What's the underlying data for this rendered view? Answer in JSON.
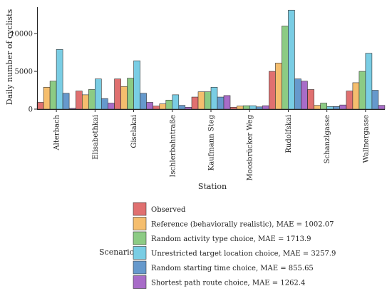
{
  "chart_data": {
    "type": "bar",
    "xlabel": "Station",
    "ylabel": "Daily number of cyclists",
    "ylim": [
      0,
      13500
    ],
    "yticks": [
      0,
      5000,
      10000
    ],
    "grid": false,
    "legend_placement": "bottom",
    "legend_title": "Scenario",
    "categories": [
      "Alterbach",
      "Elisabethkai",
      "Giselakai",
      "Ischlerbahntraße",
      "Kaufmann Steg",
      "Moosbrücker Weg",
      "Rudolfskai",
      "Schanzlgasse",
      "Wallnergasse"
    ],
    "series": [
      {
        "name": "Observed",
        "color": "#E07070",
        "values": [
          900,
          2400,
          4000,
          400,
          1600,
          250,
          5000,
          2600,
          2400
        ]
      },
      {
        "name": "Reference (behaviorally realistic), MAE = 1002.07",
        "color": "#F5BE6E",
        "values": [
          2900,
          1900,
          3000,
          700,
          2300,
          400,
          6100,
          500,
          3500
        ]
      },
      {
        "name": "Random activity type choice, MAE = 1713.9",
        "color": "#8CCB84",
        "values": [
          3700,
          2600,
          4100,
          1200,
          2300,
          450,
          11000,
          800,
          5000
        ]
      },
      {
        "name": "Unrestricted target location choice, MAE = 3257.9",
        "color": "#79CDE4",
        "values": [
          7900,
          4000,
          6400,
          1900,
          2900,
          450,
          13100,
          350,
          7400
        ]
      },
      {
        "name": "Random starting time choice, MAE = 855.65",
        "color": "#6699CC",
        "values": [
          2100,
          1400,
          2100,
          500,
          1600,
          300,
          4000,
          350,
          2500
        ]
      },
      {
        "name": "Shortest path route choice, MAE = 1262.4",
        "color": "#A86CC8",
        "values": [
          100,
          800,
          900,
          250,
          1800,
          450,
          3700,
          550,
          500
        ]
      }
    ]
  }
}
